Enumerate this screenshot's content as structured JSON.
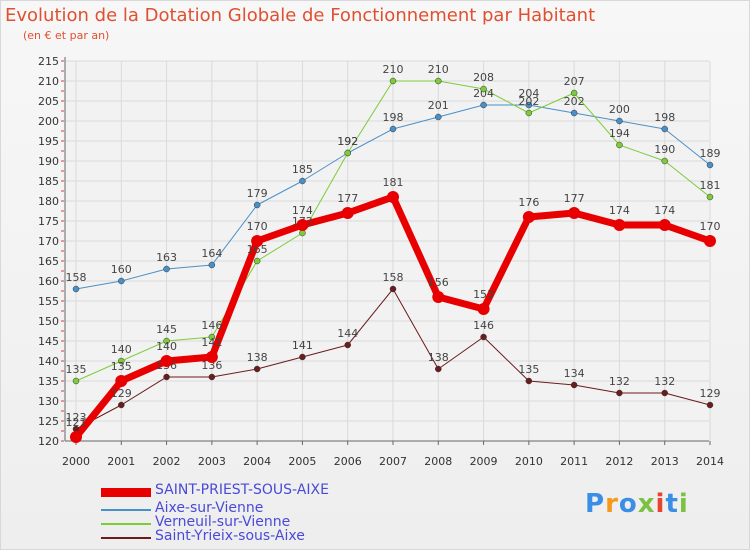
{
  "header": {
    "title": "Evolution de la Dotation Globale de Fonctionnement par Habitant",
    "subtitle": "(en € et par an)"
  },
  "logo": {
    "text": "Proxiti",
    "colors": [
      "#3a8ee6",
      "#f39a1e",
      "#3a8ee6",
      "#7cc242",
      "#e8432e",
      "#3a8ee6",
      "#7cc242"
    ]
  },
  "chart_data": {
    "type": "line",
    "x": [
      "2000",
      "2001",
      "2002",
      "2003",
      "2004",
      "2005",
      "2006",
      "2007",
      "2008",
      "2009",
      "2010",
      "2011",
      "2012",
      "2013",
      "2014"
    ],
    "ylim": [
      120,
      215
    ],
    "yticks": [
      120,
      125,
      130,
      135,
      140,
      145,
      150,
      155,
      160,
      165,
      170,
      175,
      180,
      185,
      190,
      195,
      200,
      205,
      210,
      215
    ],
    "grid": true,
    "legend_position": "bottom-left",
    "series": [
      {
        "name": "Aixe-sur-Vienne",
        "color": "#4a90c8",
        "width": 1,
        "values": [
          158,
          160,
          163,
          164,
          179,
          185,
          192,
          198,
          201,
          204,
          204,
          202,
          200,
          198,
          189
        ]
      },
      {
        "name": "Verneuil-sur-Vienne",
        "color": "#7ccc3a",
        "width": 1,
        "values": [
          135,
          140,
          145,
          146,
          165,
          172,
          192,
          210,
          210,
          208,
          202,
          207,
          194,
          190,
          181
        ]
      },
      {
        "name": "Saint-Yrieix-sous-Aixe",
        "color": "#6b1c1c",
        "width": 1,
        "values": [
          123,
          129,
          136,
          136,
          138,
          141,
          144,
          158,
          138,
          146,
          135,
          134,
          132,
          132,
          129
        ]
      },
      {
        "name": "SAINT-PRIEST-SOUS-AIXE",
        "color": "#e80000",
        "width": 7,
        "values": [
          121,
          135,
          140,
          141,
          170,
          174,
          177,
          181,
          156,
          153,
          176,
          177,
          174,
          174,
          170
        ]
      }
    ],
    "legend_order": [
      3,
      0,
      1,
      2
    ]
  }
}
